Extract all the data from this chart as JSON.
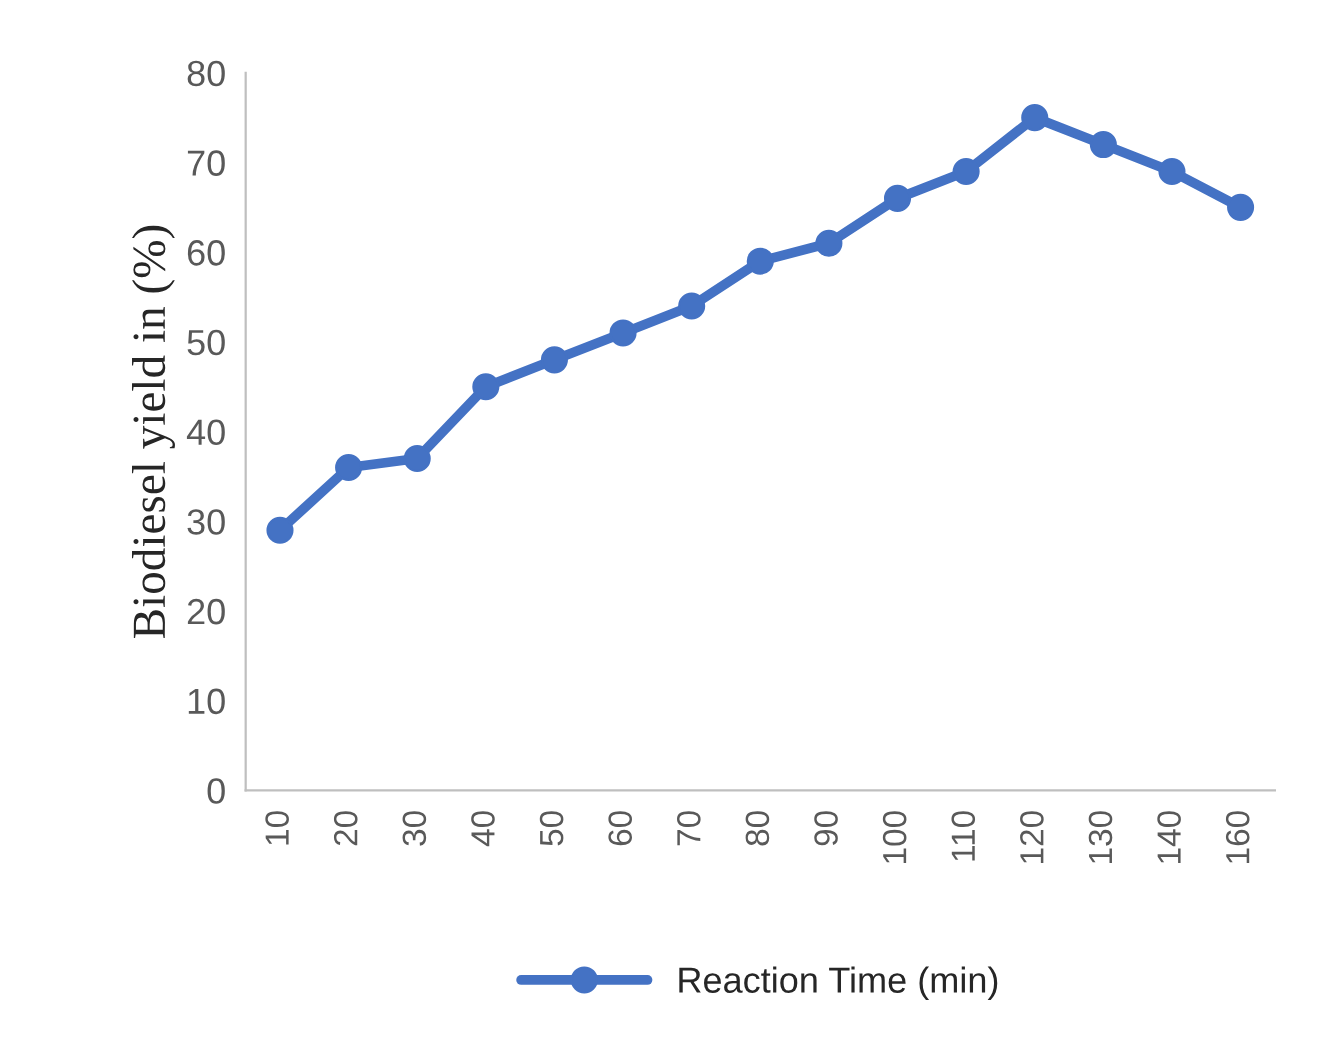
{
  "chart_data": {
    "type": "line",
    "ylabel": "Biodiesel yield in (%)",
    "categories": [
      "10",
      "20",
      "30",
      "40",
      "50",
      "60",
      "70",
      "80",
      "90",
      "100",
      "110",
      "120",
      "130",
      "140",
      "160"
    ],
    "series": [
      {
        "name": "Reaction Time (min)",
        "color": "#4472c4",
        "values": [
          29,
          36,
          37,
          45,
          48,
          51,
          54,
          59,
          61,
          66,
          69,
          75,
          72,
          69,
          65
        ]
      }
    ],
    "ylim": [
      0,
      80
    ],
    "yticks": [
      0,
      10,
      20,
      30,
      40,
      50,
      60,
      70,
      80
    ],
    "grid": false,
    "legend": "bottom",
    "marker": "circle",
    "line_style": "solid"
  }
}
